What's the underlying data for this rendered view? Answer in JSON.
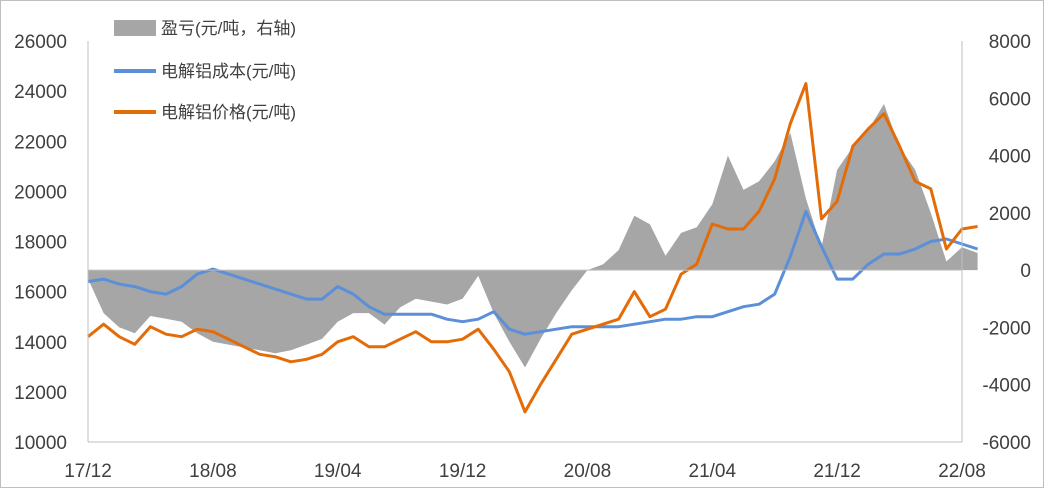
{
  "chart_data": {
    "type": "line",
    "title": "",
    "xlabel": "",
    "ylabel": "",
    "y_left": {
      "ylim": [
        10000,
        26000
      ],
      "ticks": [
        10000,
        12000,
        14000,
        16000,
        18000,
        20000,
        22000,
        24000,
        26000
      ]
    },
    "y_right": {
      "ylim": [
        -6000,
        8000
      ],
      "ticks": [
        -6000,
        -4000,
        -2000,
        0,
        2000,
        4000,
        6000,
        8000
      ]
    },
    "x_ticks": [
      "17/12",
      "18/08",
      "19/04",
      "19/12",
      "20/08",
      "21/04",
      "21/12",
      "22/08"
    ],
    "grid": false,
    "legend_position": "top-left",
    "colors": {
      "profit": "#a6a6a6",
      "cost": "#5b8fd8",
      "price": "#e36c09"
    },
    "series": [
      {
        "name": "盈亏(元/吨，右轴)",
        "type": "area",
        "axis": "right",
        "points": [
          [
            "17/12",
            -300
          ],
          [
            "18/01",
            -1500
          ],
          [
            "18/02",
            -2000
          ],
          [
            "18/03",
            -2200
          ],
          [
            "18/04",
            -1600
          ],
          [
            "18/05",
            -1700
          ],
          [
            "18/06",
            -1800
          ],
          [
            "18/07",
            -2200
          ],
          [
            "18/08",
            -2500
          ],
          [
            "18/09",
            -2600
          ],
          [
            "18/10",
            -2700
          ],
          [
            "18/11",
            -2800
          ],
          [
            "18/12",
            -2900
          ],
          [
            "19/01",
            -2800
          ],
          [
            "19/02",
            -2600
          ],
          [
            "19/03",
            -2400
          ],
          [
            "19/04",
            -1800
          ],
          [
            "19/05",
            -1500
          ],
          [
            "19/06",
            -1500
          ],
          [
            "19/07",
            -1900
          ],
          [
            "19/08",
            -1300
          ],
          [
            "19/09",
            -1000
          ],
          [
            "19/10",
            -1100
          ],
          [
            "19/11",
            -1200
          ],
          [
            "19/12",
            -1000
          ],
          [
            "20/01",
            -200
          ],
          [
            "20/02",
            -1500
          ],
          [
            "20/03",
            -2500
          ],
          [
            "20/04",
            -3400
          ],
          [
            "20/05",
            -2400
          ],
          [
            "20/06",
            -1500
          ],
          [
            "20/07",
            -700
          ],
          [
            "20/08",
            0
          ],
          [
            "20/09",
            200
          ],
          [
            "20/10",
            700
          ],
          [
            "20/11",
            1900
          ],
          [
            "20/12",
            1600
          ],
          [
            "21/01",
            500
          ],
          [
            "21/02",
            1300
          ],
          [
            "21/03",
            1500
          ],
          [
            "21/04",
            2300
          ],
          [
            "21/05",
            4000
          ],
          [
            "21/06",
            2800
          ],
          [
            "21/07",
            3100
          ],
          [
            "21/08",
            3800
          ],
          [
            "21/09",
            4800
          ],
          [
            "21/10",
            2500
          ],
          [
            "21/11",
            800
          ],
          [
            "21/12",
            3500
          ],
          [
            "22/01",
            4300
          ],
          [
            "22/02",
            4900
          ],
          [
            "22/03",
            5800
          ],
          [
            "22/04",
            4300
          ],
          [
            "22/05",
            3500
          ],
          [
            "22/06",
            2000
          ],
          [
            "22/07",
            300
          ],
          [
            "22/08",
            800
          ],
          [
            "22/09",
            600
          ]
        ]
      },
      {
        "name": "电解铝成本(元/吨)",
        "type": "line",
        "axis": "left",
        "points": [
          [
            "17/12",
            16400
          ],
          [
            "18/01",
            16500
          ],
          [
            "18/02",
            16300
          ],
          [
            "18/03",
            16200
          ],
          [
            "18/04",
            16000
          ],
          [
            "18/05",
            15900
          ],
          [
            "18/06",
            16200
          ],
          [
            "18/07",
            16700
          ],
          [
            "18/08",
            16900
          ],
          [
            "18/09",
            16700
          ],
          [
            "18/10",
            16500
          ],
          [
            "18/11",
            16300
          ],
          [
            "18/12",
            16100
          ],
          [
            "19/01",
            15900
          ],
          [
            "19/02",
            15700
          ],
          [
            "19/03",
            15700
          ],
          [
            "19/04",
            16200
          ],
          [
            "19/05",
            15900
          ],
          [
            "19/06",
            15400
          ],
          [
            "19/07",
            15100
          ],
          [
            "19/08",
            15100
          ],
          [
            "19/09",
            15100
          ],
          [
            "19/10",
            15100
          ],
          [
            "19/11",
            14900
          ],
          [
            "19/12",
            14800
          ],
          [
            "20/01",
            14900
          ],
          [
            "20/02",
            15200
          ],
          [
            "20/03",
            14500
          ],
          [
            "20/04",
            14300
          ],
          [
            "20/05",
            14400
          ],
          [
            "20/06",
            14500
          ],
          [
            "20/07",
            14600
          ],
          [
            "20/08",
            14600
          ],
          [
            "20/09",
            14600
          ],
          [
            "20/10",
            14600
          ],
          [
            "20/11",
            14700
          ],
          [
            "20/12",
            14800
          ],
          [
            "21/01",
            14900
          ],
          [
            "21/02",
            14900
          ],
          [
            "21/03",
            15000
          ],
          [
            "21/04",
            15000
          ],
          [
            "21/05",
            15200
          ],
          [
            "21/06",
            15400
          ],
          [
            "21/07",
            15500
          ],
          [
            "21/08",
            15900
          ],
          [
            "21/09",
            17400
          ],
          [
            "21/10",
            19200
          ],
          [
            "21/11",
            17800
          ],
          [
            "21/12",
            16500
          ],
          [
            "22/01",
            16500
          ],
          [
            "22/02",
            17100
          ],
          [
            "22/03",
            17500
          ],
          [
            "22/04",
            17500
          ],
          [
            "22/05",
            17700
          ],
          [
            "22/06",
            18000
          ],
          [
            "22/07",
            18100
          ],
          [
            "22/08",
            17900
          ],
          [
            "22/09",
            17700
          ]
        ]
      },
      {
        "name": "电解铝价格(元/吨)",
        "type": "line",
        "axis": "left",
        "points": [
          [
            "17/12",
            14200
          ],
          [
            "18/01",
            14700
          ],
          [
            "18/02",
            14200
          ],
          [
            "18/03",
            13900
          ],
          [
            "18/04",
            14600
          ],
          [
            "18/05",
            14300
          ],
          [
            "18/06",
            14200
          ],
          [
            "18/07",
            14500
          ],
          [
            "18/08",
            14400
          ],
          [
            "18/09",
            14100
          ],
          [
            "18/10",
            13800
          ],
          [
            "18/11",
            13500
          ],
          [
            "18/12",
            13400
          ],
          [
            "19/01",
            13200
          ],
          [
            "19/02",
            13300
          ],
          [
            "19/03",
            13500
          ],
          [
            "19/04",
            14000
          ],
          [
            "19/05",
            14200
          ],
          [
            "19/06",
            13800
          ],
          [
            "19/07",
            13800
          ],
          [
            "19/08",
            14100
          ],
          [
            "19/09",
            14400
          ],
          [
            "19/10",
            14000
          ],
          [
            "19/11",
            14000
          ],
          [
            "19/12",
            14100
          ],
          [
            "20/01",
            14500
          ],
          [
            "20/02",
            13700
          ],
          [
            "20/03",
            12800
          ],
          [
            "20/04",
            11200
          ],
          [
            "20/05",
            12300
          ],
          [
            "20/06",
            13300
          ],
          [
            "20/07",
            14300
          ],
          [
            "20/08",
            14500
          ],
          [
            "20/09",
            14700
          ],
          [
            "20/10",
            14900
          ],
          [
            "20/11",
            16000
          ],
          [
            "20/12",
            15000
          ],
          [
            "21/01",
            15300
          ],
          [
            "21/02",
            16700
          ],
          [
            "21/03",
            17100
          ],
          [
            "21/04",
            18700
          ],
          [
            "21/05",
            18500
          ],
          [
            "21/06",
            18500
          ],
          [
            "21/07",
            19200
          ],
          [
            "21/08",
            20500
          ],
          [
            "21/09",
            22700
          ],
          [
            "21/10",
            24300
          ],
          [
            "21/11",
            18900
          ],
          [
            "21/12",
            19600
          ],
          [
            "22/01",
            21800
          ],
          [
            "22/02",
            22500
          ],
          [
            "22/03",
            23100
          ],
          [
            "22/04",
            21800
          ],
          [
            "22/05",
            20400
          ],
          [
            "22/06",
            20100
          ],
          [
            "22/07",
            17700
          ],
          [
            "22/08",
            18500
          ],
          [
            "22/09",
            18600
          ]
        ]
      }
    ]
  }
}
